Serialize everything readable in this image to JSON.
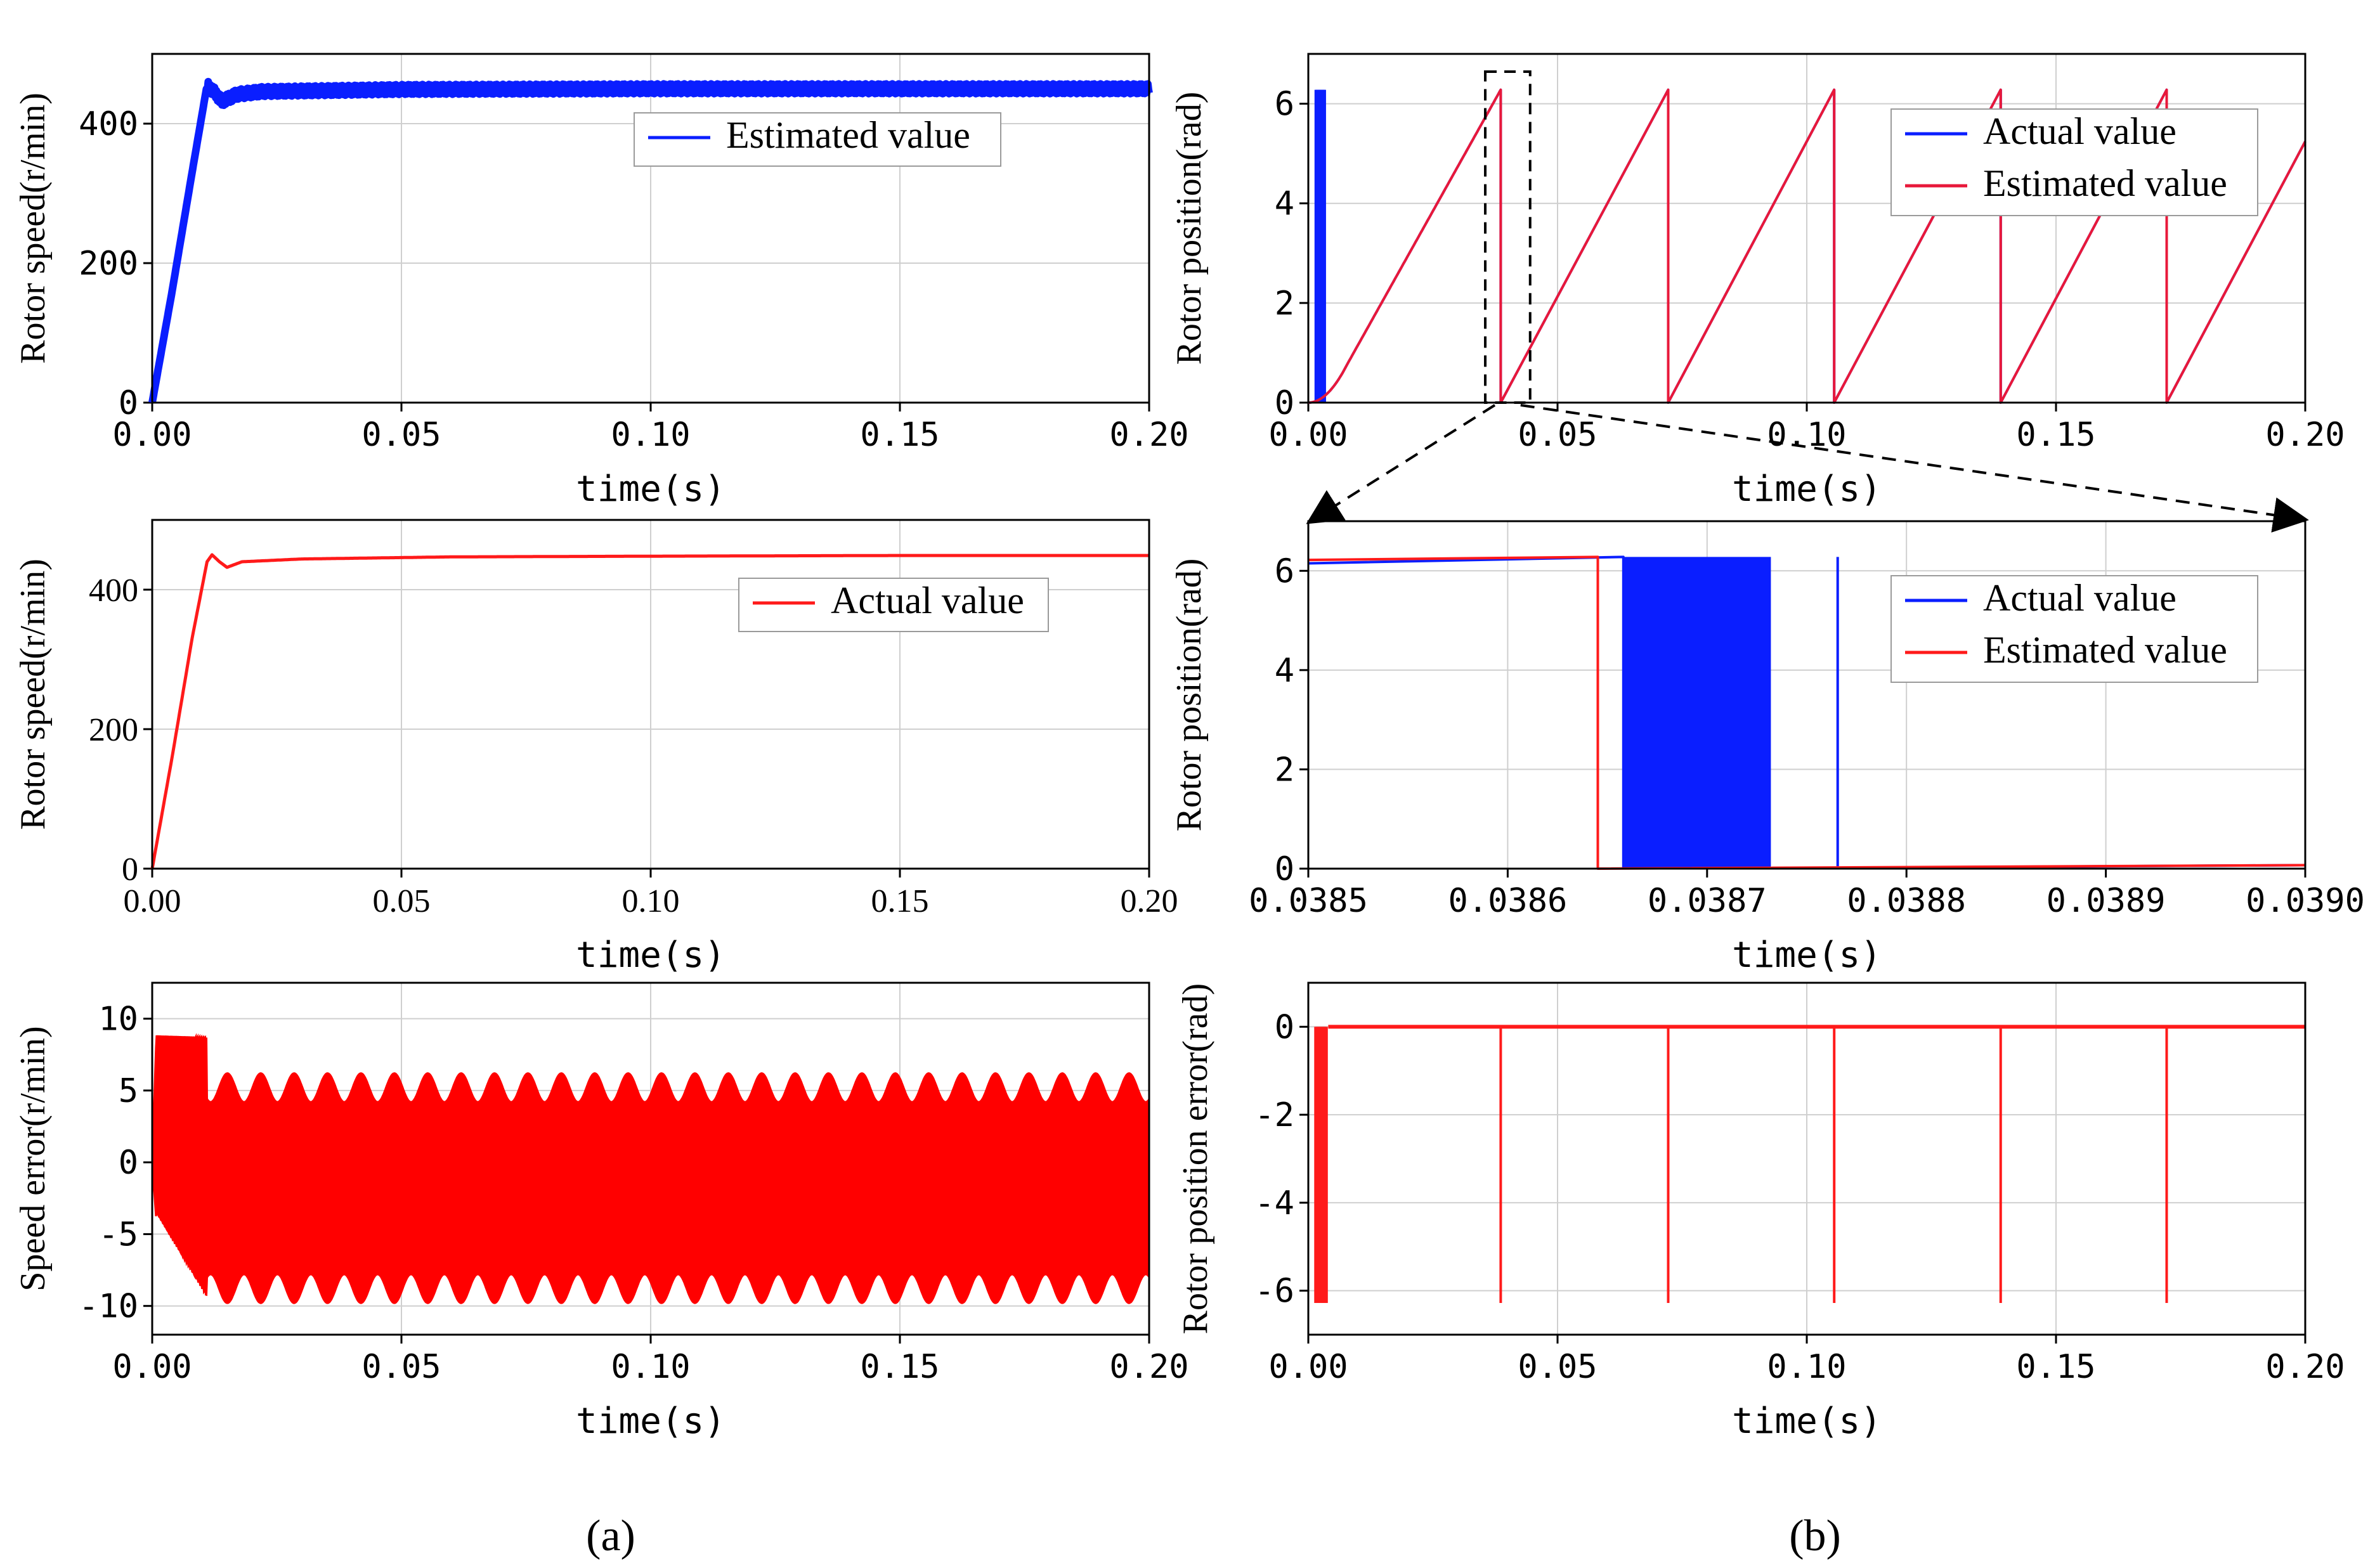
{
  "figure": {
    "panel_a_label": "(a)",
    "panel_b_label": "(b)"
  },
  "chart_data": [
    {
      "id": "a1",
      "type": "line",
      "ylabel": "Rotor speed(r/min)",
      "xlabel": "time(s)",
      "xlim": [
        0,
        0.2
      ],
      "ylim": [
        0,
        500
      ],
      "xticks": [
        "0.00",
        "0.05",
        "0.10",
        "0.15",
        "0.20"
      ],
      "xtick_values": [
        0,
        0.05,
        0.1,
        0.15,
        0.2
      ],
      "yticks": [
        "0",
        "200",
        "400"
      ],
      "ytick_values": [
        0,
        200,
        400
      ],
      "grid": true,
      "legend": "top-right",
      "series": [
        {
          "name": "Estimated value",
          "color": "#0a1eff",
          "x": [
            0,
            0.004,
            0.008,
            0.011,
            0.0125,
            0.014,
            0.017,
            0.022,
            0.05,
            0.1,
            0.15,
            0.2
          ],
          "y": [
            0,
            160,
            330,
            455,
            445,
            432,
            442,
            446,
            449,
            450,
            450,
            450
          ],
          "ripple": 14
        }
      ]
    },
    {
      "id": "a2",
      "type": "line",
      "ylabel": "Rotor speed(r/min)",
      "xlabel": "time(s)",
      "xlim": [
        0,
        0.2
      ],
      "ylim": [
        0,
        500
      ],
      "xticks": [
        "0.00",
        "0.05",
        "0.10",
        "0.15",
        "0.20"
      ],
      "xtick_values": [
        0,
        0.05,
        0.1,
        0.15,
        0.2
      ],
      "yticks": [
        "0",
        "200",
        "400"
      ],
      "ytick_values": [
        0,
        200,
        400
      ],
      "grid": true,
      "legend": "top-right",
      "series": [
        {
          "name": "Actual value",
          "color": "#ff1a1a",
          "x": [
            0,
            0.004,
            0.008,
            0.011,
            0.012,
            0.0135,
            0.015,
            0.018,
            0.03,
            0.06,
            0.1,
            0.15,
            0.2
          ],
          "y": [
            0,
            160,
            330,
            440,
            450,
            440,
            432,
            440,
            444,
            447,
            448,
            449,
            449
          ],
          "ripple": 0
        }
      ]
    },
    {
      "id": "a3",
      "type": "area",
      "ylabel": "Speed error(r/min)",
      "xlabel": "time(s)",
      "xlim": [
        0,
        0.2
      ],
      "ylim": [
        -12,
        12.5
      ],
      "xticks": [
        "0.00",
        "0.05",
        "0.10",
        "0.15",
        "0.20"
      ],
      "xtick_values": [
        0,
        0.05,
        0.1,
        0.15,
        0.2
      ],
      "yticks": [
        "-10",
        "-5",
        "0",
        "5",
        "10"
      ],
      "ytick_values": [
        -10,
        -5,
        0,
        5,
        10
      ],
      "grid": true,
      "series": [
        {
          "name": "Speed error",
          "color": "#ff0000",
          "note": "dense oscillation band",
          "upper_start": 8.5,
          "lower_start": -3,
          "upper_settled": 5.2,
          "lower_settled": -8.8,
          "envelope_ripple": 1,
          "envelope_period": 0.0067,
          "transition_end": 0.011
        }
      ]
    },
    {
      "id": "b1",
      "type": "line",
      "ylabel": "Rotor position(rad)",
      "xlabel": "time(s)",
      "xlim": [
        0,
        0.2
      ],
      "ylim": [
        0,
        7
      ],
      "xticks": [
        "0.00",
        "0.05",
        "0.10",
        "0.15",
        "0.20"
      ],
      "xtick_values": [
        0,
        0.05,
        0.1,
        0.15,
        0.2
      ],
      "yticks": [
        "0",
        "2",
        "4",
        "6"
      ],
      "ytick_values": [
        0,
        2,
        4,
        6
      ],
      "grid": true,
      "legend": "top-right",
      "zoom_window": [
        0.0355,
        0.0445
      ],
      "series": [
        {
          "name": "Actual value",
          "color": "#0a1eff"
        },
        {
          "name": "Estimated value",
          "color": "#e8183a",
          "wrap_times": [
            0.0386,
            0.0722,
            0.1055,
            0.1389,
            0.1722
          ],
          "period": 0.0333,
          "max": 6.28
        }
      ]
    },
    {
      "id": "b2",
      "type": "line",
      "ylabel": "Rotor position(rad)",
      "xlabel": "time(s)",
      "xlim": [
        0.0385,
        0.039
      ],
      "ylim": [
        0,
        7
      ],
      "xticks": [
        "0.0385",
        "0.0386",
        "0.0387",
        "0.0388",
        "0.0389",
        "0.0390"
      ],
      "xtick_values": [
        0.0385,
        0.0386,
        0.0387,
        0.0388,
        0.0389,
        0.039
      ],
      "yticks": [
        "0",
        "2",
        "4",
        "6"
      ],
      "ytick_values": [
        0,
        2,
        4,
        6
      ],
      "grid": true,
      "legend": "top-right",
      "series": [
        {
          "name": "Actual value",
          "color": "#0a1eff",
          "drop_time": 0.038658,
          "dense_band": [
            0.038658,
            0.038732
          ],
          "spike_time": 0.0387655
        },
        {
          "name": "Estimated value",
          "color": "#ff1a1a",
          "drop_time": 0.0386452,
          "high_value": 6.28
        }
      ]
    },
    {
      "id": "b3",
      "type": "line",
      "ylabel": "Rotor position error(rad)",
      "xlabel": "time(s)",
      "xlim": [
        0,
        0.2
      ],
      "ylim": [
        -7,
        1
      ],
      "xticks": [
        "0.00",
        "0.05",
        "0.10",
        "0.15",
        "0.20"
      ],
      "xtick_values": [
        0,
        0.05,
        0.1,
        0.15,
        0.2
      ],
      "yticks": [
        "-6",
        "-4",
        "-2",
        "0"
      ],
      "ytick_values": [
        -6,
        -4,
        -2,
        0
      ],
      "grid": true,
      "series": [
        {
          "name": "Position error",
          "color": "#ff1a1a",
          "spike_times": [
            0.0386,
            0.0722,
            0.1055,
            0.1389,
            0.1722
          ],
          "spike_value": -6.28
        }
      ]
    }
  ]
}
